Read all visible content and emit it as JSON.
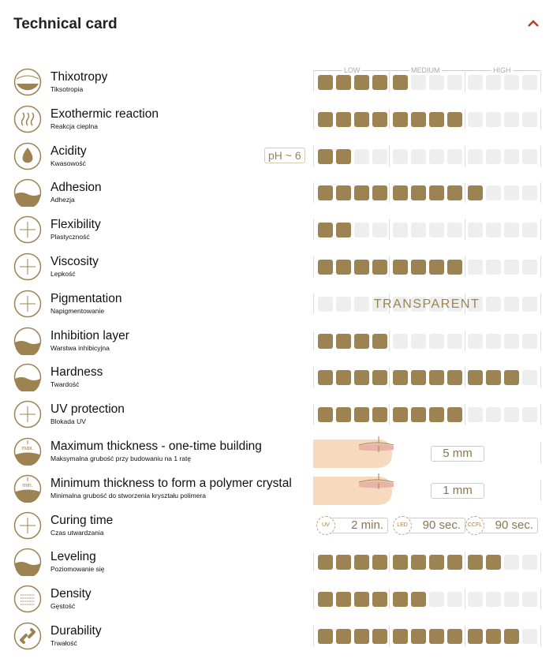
{
  "header": {
    "title": "Technical card",
    "collapse_icon": "chevron-up-icon",
    "accent": "#c0392b"
  },
  "scale": {
    "low": "LOW",
    "medium": "MEDIUM",
    "high": "HIGH",
    "total_segments": 12,
    "fill_color": "#9c8351",
    "empty_color": "#eeeeee"
  },
  "rows": [
    {
      "name": "Thixotropy",
      "sub": "Tiksotropia",
      "type": "bar",
      "value": 5,
      "icon": "thixotropy-icon"
    },
    {
      "name": "Exothermic reaction",
      "sub": "Reakcja cieplna",
      "type": "bar",
      "value": 8,
      "icon": "heat-icon"
    },
    {
      "name": "Acidity",
      "sub": "Kwasowość",
      "type": "bar",
      "value": 2,
      "badge": "pH ~ 6",
      "icon": "ph-drop-icon"
    },
    {
      "name": "Adhesion",
      "sub": "Adhezja",
      "type": "bar",
      "value": 9,
      "icon": "adhesion-icon"
    },
    {
      "name": "Flexibility",
      "sub": "Plastyczność",
      "type": "bar",
      "value": 2,
      "icon": "flexibility-icon"
    },
    {
      "name": "Viscosity",
      "sub": "Lepkość",
      "type": "bar",
      "value": 8,
      "icon": "viscosity-icon"
    },
    {
      "name": "Pigmentation",
      "sub": "Napigmentowanie",
      "type": "bar",
      "value": 0,
      "overlay": "TRANSPARENT",
      "icon": "drops-icon"
    },
    {
      "name": "Inhibition layer",
      "sub": "Warstwa inhibicyjna",
      "type": "bar",
      "value": 4,
      "icon": "inhibition-layer-icon"
    },
    {
      "name": "Hardness",
      "sub": "Twardość",
      "type": "bar",
      "value": 11,
      "icon": "hammer-icon"
    },
    {
      "name": "UV protection",
      "sub": "Blokada UV",
      "type": "bar",
      "value": 8,
      "icon": "uv-sun-icon"
    },
    {
      "name": "Maximum thickness - one-time building",
      "sub": "Maksymalna grubość przy budowaniu na 1 ratę",
      "type": "thickness",
      "value": "5 mm",
      "icon_text": "max.",
      "icon": "max-thickness-icon"
    },
    {
      "name": "Minimum thickness to form a polymer crystal",
      "sub": "Minimalna grubość do stworzenia kryształu polimera",
      "type": "thickness",
      "value": "1 mm",
      "icon_text": "min.",
      "icon": "min-thickness-icon"
    },
    {
      "name": "Curing time",
      "sub": "Czas utwardzania",
      "type": "curing",
      "icon": "lamp-icon",
      "curing": [
        {
          "lamp": "UV",
          "time": "2 min."
        },
        {
          "lamp": "LED",
          "time": "90 sec."
        },
        {
          "lamp": "CCFL",
          "time": "90 sec."
        }
      ]
    },
    {
      "name": "Leveling",
      "sub": "Poziomowanie się",
      "type": "bar",
      "value": 10,
      "icon": "leveling-icon"
    },
    {
      "name": "Density",
      "sub": "Gęstość",
      "type": "bar",
      "value": 6,
      "icon": "density-icon"
    },
    {
      "name": "Durability",
      "sub": "Trwałość",
      "type": "bar",
      "value": 11,
      "icon": "chain-link-icon"
    }
  ]
}
